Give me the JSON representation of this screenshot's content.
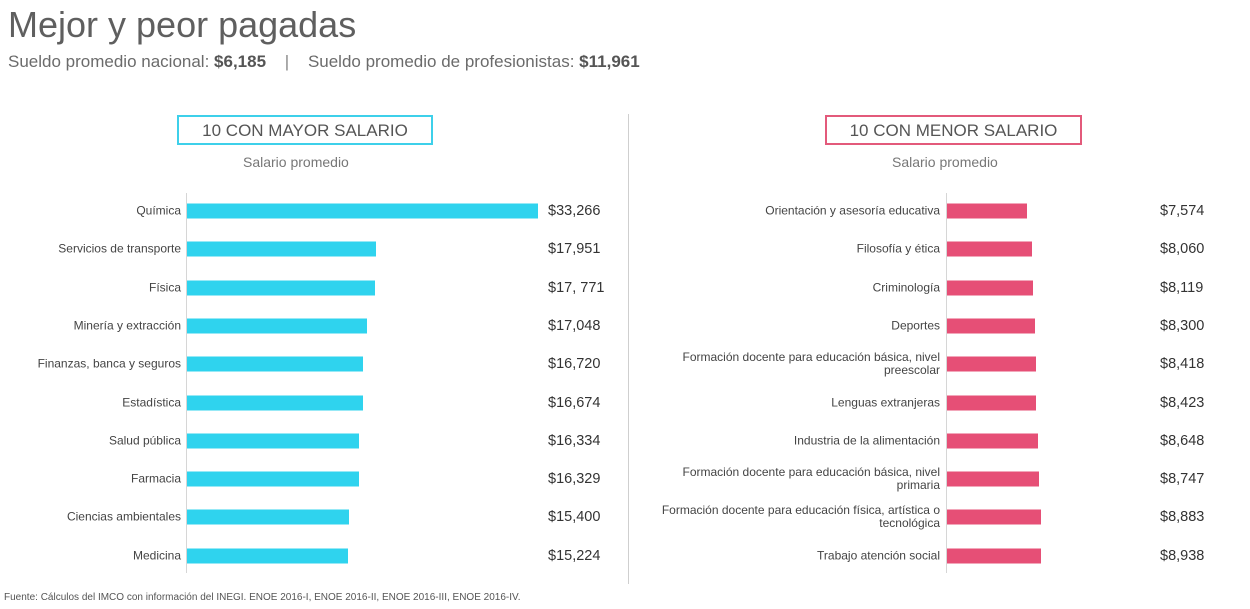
{
  "header": {
    "title": "Mejor y peor pagadas",
    "national_label": "Sueldo promedio nacional:",
    "national_value": "$6,185",
    "separator": "|",
    "professional_label": "Sueldo promedio de profesionistas:",
    "professional_value": "$11,961"
  },
  "colors": {
    "top_bar": "#2fd3ee",
    "bottom_bar": "#e64f76",
    "top_border": "#3ed0ea",
    "bottom_border": "#e35a7b"
  },
  "chart_data": [
    {
      "type": "bar",
      "orientation": "horizontal",
      "title": "10 CON MAYOR SALARIO",
      "xlabel": "Salario promedio",
      "categories": [
        "Química",
        "Servicios de transporte",
        "Física",
        "Minería y extracción",
        "Finanzas, banca y seguros",
        "Estadística",
        "Salud pública",
        "Farmacia",
        "Ciencias ambientales",
        "Medicina"
      ],
      "values": [
        33266,
        17951,
        17771,
        17048,
        16720,
        16674,
        16334,
        16329,
        15400,
        15224
      ],
      "labels": [
        "$33,266",
        "$17,951",
        "$17, 771",
        "$17,048",
        "$16,720",
        "$16,674",
        "$16,334",
        "$16,329",
        "$15,400",
        "$15,224"
      ],
      "xlim": [
        0,
        33266
      ]
    },
    {
      "type": "bar",
      "orientation": "horizontal",
      "title": "10 CON MENOR SALARIO",
      "xlabel": "Salario promedio",
      "categories": [
        "Orientación y asesoría educativa",
        "Filosofía y ética",
        "Criminología",
        "Deportes",
        "Formación docente para educación básica, nivel preescolar",
        "Lenguas extranjeras",
        "Industria de la alimentación",
        "Formación docente para educación básica, nivel primaria",
        "Formación docente para educación física, artística o tecnológica",
        "Trabajo atención social"
      ],
      "values": [
        7574,
        8060,
        8119,
        8300,
        8418,
        8423,
        8648,
        8747,
        8883,
        8938
      ],
      "labels": [
        "$7,574",
        "$8,060",
        "$8,119",
        "$8,300",
        "$8,418",
        "$8,423",
        "$8,648",
        "$8,747",
        "$8,883",
        "$8,938"
      ],
      "xlim": [
        0,
        33266
      ]
    }
  ],
  "footer": {
    "source": "Fuente: Cálculos del IMCO con información del INEGI. ENOE 2016-I, ENOE 2016-II, ENOE 2016-III, ENOE 2016-IV."
  }
}
